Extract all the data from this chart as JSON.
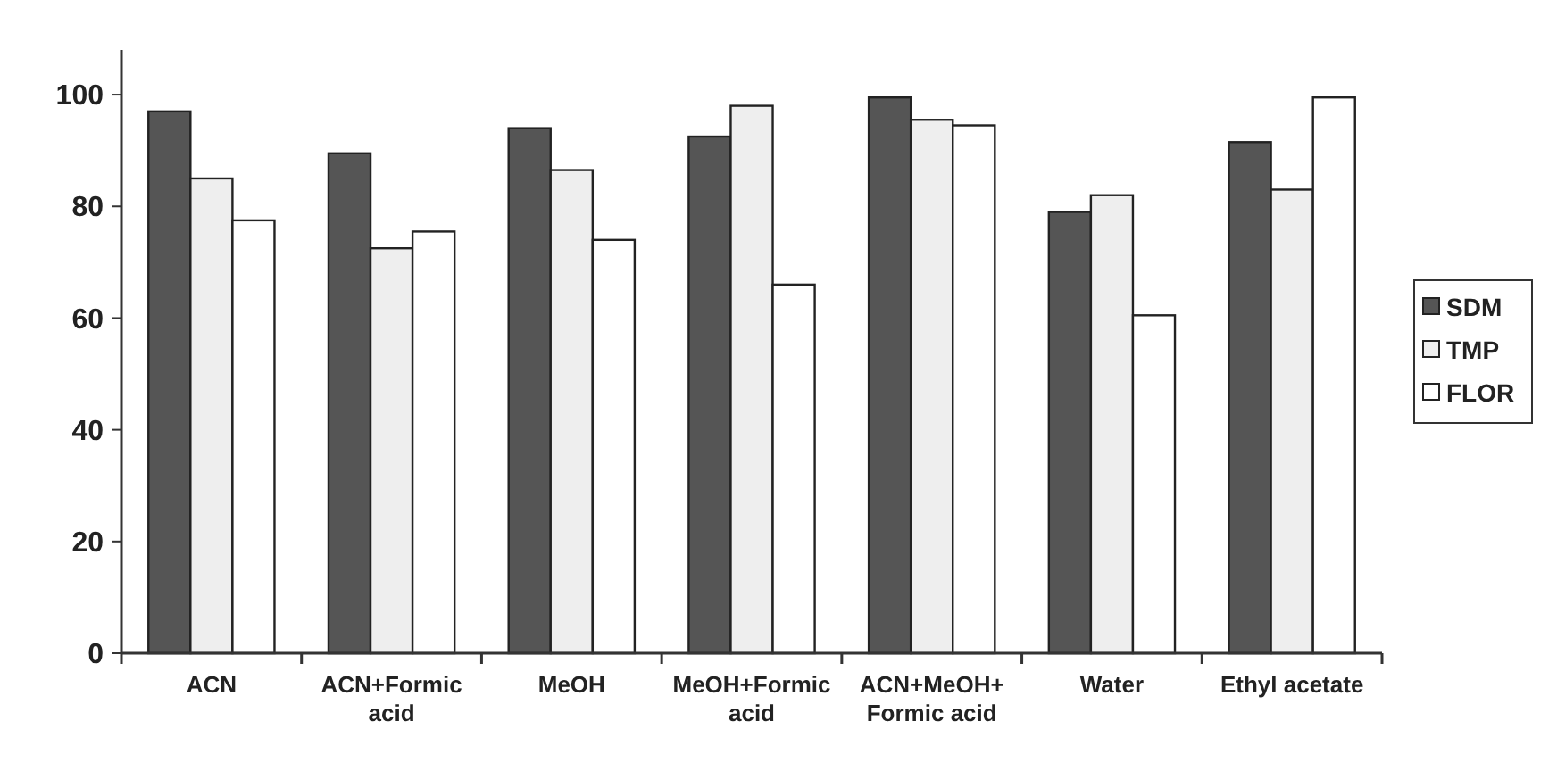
{
  "chart_data": {
    "type": "bar",
    "categories": [
      "ACN",
      "ACN+Formic acid",
      "MeOH",
      "MeOH+Formic acid",
      "ACN+MeOH+Formic acid",
      "Water",
      "Ethyl acetate"
    ],
    "series": [
      {
        "name": "SDM",
        "color": "#555555",
        "values": [
          97,
          89.5,
          94,
          92.5,
          99.5,
          79,
          91.5
        ]
      },
      {
        "name": "TMP",
        "color": "#eeeeee",
        "values": [
          85,
          72.5,
          86.5,
          98,
          95.5,
          82,
          83
        ]
      },
      {
        "name": "FLOR",
        "color": "#ffffff",
        "values": [
          77.5,
          75.5,
          74,
          66,
          94.5,
          60.5,
          99.5
        ]
      }
    ],
    "ylim": [
      0,
      108
    ],
    "yticks": [
      0,
      20,
      40,
      60,
      80,
      100
    ],
    "grid": false,
    "legend": "right"
  }
}
